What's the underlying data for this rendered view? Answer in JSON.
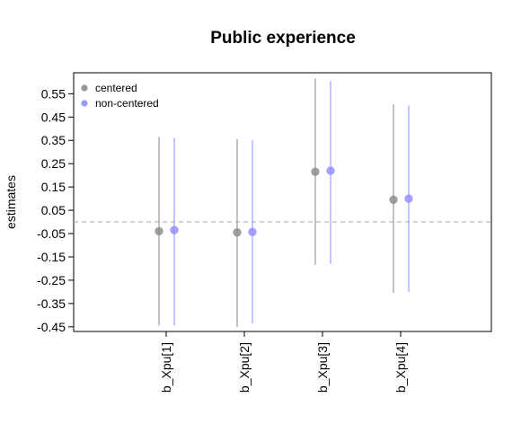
{
  "chart_data": {
    "type": "scatter",
    "title": "Public experience",
    "xlabel": "",
    "ylabel": "estimates",
    "categories": [
      "b_Xpu[1]",
      "b_Xpu[2]",
      "b_Xpu[3]",
      "b_Xpu[4]"
    ],
    "y_ticks": [
      "0.55",
      "0.45",
      "0.35",
      "0.25",
      "0.15",
      "0.05",
      "-0.05",
      "-0.15",
      "-0.25",
      "-0.35",
      "-0.45"
    ],
    "ylim": [
      -0.47,
      0.64
    ],
    "reference_line": 0.0,
    "grid": false,
    "legend_position": "top-left",
    "series": [
      {
        "name": "centered",
        "color": "#8a8a8a",
        "estimates": [
          -0.04,
          -0.045,
          0.215,
          0.095
        ],
        "lower": [
          -0.445,
          -0.45,
          -0.185,
          -0.305
        ],
        "upper": [
          0.365,
          0.355,
          0.615,
          0.505
        ]
      },
      {
        "name": "non-centered",
        "color": "#8f8fff",
        "estimates": [
          -0.035,
          -0.043,
          0.22,
          0.1
        ],
        "lower": [
          -0.445,
          -0.435,
          -0.18,
          -0.3
        ],
        "upper": [
          0.36,
          0.35,
          0.605,
          0.5
        ]
      }
    ]
  }
}
